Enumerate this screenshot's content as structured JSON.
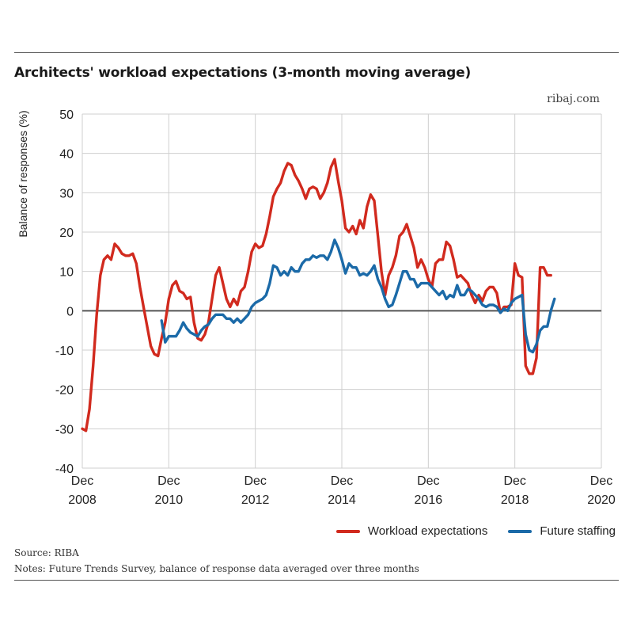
{
  "header": {
    "title": "Architects' workload expectations (3-month moving average)",
    "credit": "ribaj.com"
  },
  "legend": {
    "workload": "Workload expectations",
    "staffing": "Future staffing"
  },
  "footer": {
    "source": "Source: RIBA",
    "notes": "Notes: Future Trends Survey, balance of response data averaged over three months"
  },
  "colors": {
    "workload": "#d12a1e",
    "staffing": "#1b6aa8",
    "grid": "#cfcfcf",
    "zero_line": "#555555"
  },
  "chart_data": {
    "type": "line",
    "title": "Architects' workload expectations (3-month moving average)",
    "ylabel": "Balance of responses (%)",
    "xlabel": "",
    "ylim": [
      -40,
      50
    ],
    "xlim": [
      "2008-12",
      "2020-12"
    ],
    "yticks": [
      "50",
      "40",
      "30",
      "20",
      "10",
      "0",
      "-10",
      "-20",
      "-30",
      "-40"
    ],
    "xticks": [
      {
        "month": "Dec",
        "year": "2008"
      },
      {
        "month": "Dec",
        "year": "2010"
      },
      {
        "month": "Dec",
        "year": "2012"
      },
      {
        "month": "Dec",
        "year": "2014"
      },
      {
        "month": "Dec",
        "year": "2016"
      },
      {
        "month": "Dec",
        "year": "2018"
      },
      {
        "month": "Dec",
        "year": "2020"
      }
    ],
    "grid": true,
    "legend_position": "bottom-right",
    "series": [
      {
        "name": "Workload expectations",
        "color": "#d12a1e",
        "points": [
          [
            "2008-12",
            -30
          ],
          [
            "2009-01",
            -30.5
          ],
          [
            "2009-02",
            -25
          ],
          [
            "2009-03",
            -14
          ],
          [
            "2009-04",
            -1
          ],
          [
            "2009-05",
            9
          ],
          [
            "2009-06",
            13
          ],
          [
            "2009-07",
            14
          ],
          [
            "2009-08",
            13
          ],
          [
            "2009-09",
            17
          ],
          [
            "2009-10",
            16
          ],
          [
            "2009-11",
            14.5
          ],
          [
            "2009-12",
            14
          ],
          [
            "2010-01",
            14
          ],
          [
            "2010-02",
            14.5
          ],
          [
            "2010-03",
            12
          ],
          [
            "2010-04",
            6
          ],
          [
            "2010-05",
            1
          ],
          [
            "2010-06",
            -4
          ],
          [
            "2010-07",
            -9
          ],
          [
            "2010-08",
            -11
          ],
          [
            "2010-09",
            -11.5
          ],
          [
            "2010-10",
            -7
          ],
          [
            "2010-11",
            -3
          ],
          [
            "2010-12",
            3
          ],
          [
            "2011-01",
            6.5
          ],
          [
            "2011-02",
            7.5
          ],
          [
            "2011-03",
            5
          ],
          [
            "2011-04",
            4.5
          ],
          [
            "2011-05",
            3
          ],
          [
            "2011-06",
            3.5
          ],
          [
            "2011-07",
            -3
          ],
          [
            "2011-08",
            -7
          ],
          [
            "2011-09",
            -7.5
          ],
          [
            "2011-10",
            -6
          ],
          [
            "2011-11",
            -3
          ],
          [
            "2011-12",
            3
          ],
          [
            "2012-01",
            9
          ],
          [
            "2012-02",
            11
          ],
          [
            "2012-03",
            7
          ],
          [
            "2012-04",
            3
          ],
          [
            "2012-05",
            1
          ],
          [
            "2012-06",
            3
          ],
          [
            "2012-07",
            1.5
          ],
          [
            "2012-08",
            5
          ],
          [
            "2012-09",
            6
          ],
          [
            "2012-10",
            10
          ],
          [
            "2012-11",
            15
          ],
          [
            "2012-12",
            17
          ],
          [
            "2013-01",
            16
          ],
          [
            "2013-02",
            16.5
          ],
          [
            "2013-03",
            19.5
          ],
          [
            "2013-04",
            24
          ],
          [
            "2013-05",
            29
          ],
          [
            "2013-06",
            31
          ],
          [
            "2013-07",
            32.5
          ],
          [
            "2013-08",
            35.5
          ],
          [
            "2013-09",
            37.5
          ],
          [
            "2013-10",
            37
          ],
          [
            "2013-11",
            34.5
          ],
          [
            "2013-12",
            33
          ],
          [
            "2014-01",
            31
          ],
          [
            "2014-02",
            28.5
          ],
          [
            "2014-03",
            31
          ],
          [
            "2014-04",
            31.5
          ],
          [
            "2014-05",
            31
          ],
          [
            "2014-06",
            28.5
          ],
          [
            "2014-07",
            30
          ],
          [
            "2014-08",
            32.5
          ],
          [
            "2014-09",
            36.5
          ],
          [
            "2014-10",
            38.5
          ],
          [
            "2014-11",
            33
          ],
          [
            "2014-12",
            28
          ],
          [
            "2015-01",
            21
          ],
          [
            "2015-02",
            20
          ],
          [
            "2015-03",
            21.5
          ],
          [
            "2015-04",
            19.5
          ],
          [
            "2015-05",
            23
          ],
          [
            "2015-06",
            21
          ],
          [
            "2015-07",
            26.5
          ],
          [
            "2015-08",
            29.5
          ],
          [
            "2015-09",
            28
          ],
          [
            "2015-10",
            19
          ],
          [
            "2015-11",
            10
          ],
          [
            "2015-12",
            4
          ],
          [
            "2016-01",
            9
          ],
          [
            "2016-02",
            11
          ],
          [
            "2016-03",
            14
          ],
          [
            "2016-04",
            19
          ],
          [
            "2016-05",
            20
          ],
          [
            "2016-06",
            22
          ],
          [
            "2016-07",
            19
          ],
          [
            "2016-08",
            16
          ],
          [
            "2016-09",
            11
          ],
          [
            "2016-10",
            13
          ],
          [
            "2016-11",
            11
          ],
          [
            "2016-12",
            8
          ],
          [
            "2017-01",
            6
          ],
          [
            "2017-02",
            12
          ],
          [
            "2017-03",
            13
          ],
          [
            "2017-04",
            13
          ],
          [
            "2017-05",
            17.5
          ],
          [
            "2017-06",
            16.5
          ],
          [
            "2017-07",
            13
          ],
          [
            "2017-08",
            8.5
          ],
          [
            "2017-09",
            9
          ],
          [
            "2017-10",
            8
          ],
          [
            "2017-11",
            7
          ],
          [
            "2017-12",
            4
          ],
          [
            "2018-01",
            2
          ],
          [
            "2018-02",
            4
          ],
          [
            "2018-03",
            2.5
          ],
          [
            "2018-04",
            5
          ],
          [
            "2018-05",
            6
          ],
          [
            "2018-06",
            6
          ],
          [
            "2018-07",
            4.5
          ],
          [
            "2018-08",
            -0.5
          ],
          [
            "2018-09",
            1
          ],
          [
            "2018-10",
            1
          ],
          [
            "2018-11",
            1.5
          ],
          [
            "2018-12",
            12
          ],
          [
            "2019-01",
            9
          ],
          [
            "2019-02",
            8.5
          ],
          [
            "2019-03",
            -14
          ],
          [
            "2019-04",
            -16
          ],
          [
            "2019-05",
            -16
          ],
          [
            "2019-06",
            -12
          ],
          [
            "2019-07",
            11
          ],
          [
            "2019-08",
            11
          ],
          [
            "2019-09",
            9
          ],
          [
            "2019-10",
            9
          ]
        ]
      },
      {
        "name": "Future staffing",
        "color": "#1b6aa8",
        "points": [
          [
            "2010-10",
            -2.5
          ],
          [
            "2010-11",
            -8
          ],
          [
            "2010-12",
            -6.5
          ],
          [
            "2011-01",
            -6.5
          ],
          [
            "2011-02",
            -6.5
          ],
          [
            "2011-03",
            -5
          ],
          [
            "2011-04",
            -3
          ],
          [
            "2011-05",
            -4.5
          ],
          [
            "2011-06",
            -5.5
          ],
          [
            "2011-07",
            -6
          ],
          [
            "2011-08",
            -6.5
          ],
          [
            "2011-09",
            -5
          ],
          [
            "2011-10",
            -4
          ],
          [
            "2011-11",
            -3.5
          ],
          [
            "2011-12",
            -2
          ],
          [
            "2012-01",
            -1
          ],
          [
            "2012-02",
            -1
          ],
          [
            "2012-03",
            -1
          ],
          [
            "2012-04",
            -2
          ],
          [
            "2012-05",
            -2
          ],
          [
            "2012-06",
            -3
          ],
          [
            "2012-07",
            -2
          ],
          [
            "2012-08",
            -3
          ],
          [
            "2012-09",
            -2
          ],
          [
            "2012-10",
            -1
          ],
          [
            "2012-11",
            1
          ],
          [
            "2012-12",
            2
          ],
          [
            "2013-01",
            2.5
          ],
          [
            "2013-02",
            3
          ],
          [
            "2013-03",
            4
          ],
          [
            "2013-04",
            7
          ],
          [
            "2013-05",
            11.5
          ],
          [
            "2013-06",
            11
          ],
          [
            "2013-07",
            9
          ],
          [
            "2013-08",
            10
          ],
          [
            "2013-09",
            9
          ],
          [
            "2013-10",
            11
          ],
          [
            "2013-11",
            10
          ],
          [
            "2013-12",
            10
          ],
          [
            "2014-01",
            12
          ],
          [
            "2014-02",
            13
          ],
          [
            "2014-03",
            13
          ],
          [
            "2014-04",
            14
          ],
          [
            "2014-05",
            13.5
          ],
          [
            "2014-06",
            14
          ],
          [
            "2014-07",
            14
          ],
          [
            "2014-08",
            13
          ],
          [
            "2014-09",
            15
          ],
          [
            "2014-10",
            18
          ],
          [
            "2014-11",
            16
          ],
          [
            "2014-12",
            13
          ],
          [
            "2015-01",
            9.5
          ],
          [
            "2015-02",
            12
          ],
          [
            "2015-03",
            11
          ],
          [
            "2015-04",
            11
          ],
          [
            "2015-05",
            9
          ],
          [
            "2015-06",
            9.5
          ],
          [
            "2015-07",
            9
          ],
          [
            "2015-08",
            10
          ],
          [
            "2015-09",
            11.5
          ],
          [
            "2015-10",
            8
          ],
          [
            "2015-11",
            6
          ],
          [
            "2015-12",
            3
          ],
          [
            "2016-01",
            1
          ],
          [
            "2016-02",
            1.5
          ],
          [
            "2016-03",
            4
          ],
          [
            "2016-04",
            7
          ],
          [
            "2016-05",
            10
          ],
          [
            "2016-06",
            10
          ],
          [
            "2016-07",
            8
          ],
          [
            "2016-08",
            8
          ],
          [
            "2016-09",
            6
          ],
          [
            "2016-10",
            7
          ],
          [
            "2016-11",
            7
          ],
          [
            "2016-12",
            7
          ],
          [
            "2017-01",
            6
          ],
          [
            "2017-02",
            5
          ],
          [
            "2017-03",
            4
          ],
          [
            "2017-04",
            5
          ],
          [
            "2017-05",
            3
          ],
          [
            "2017-06",
            4
          ],
          [
            "2017-07",
            3.5
          ],
          [
            "2017-08",
            6.5
          ],
          [
            "2017-09",
            4
          ],
          [
            "2017-10",
            4
          ],
          [
            "2017-11",
            5.5
          ],
          [
            "2017-12",
            5
          ],
          [
            "2018-01",
            4
          ],
          [
            "2018-02",
            3
          ],
          [
            "2018-03",
            1.5
          ],
          [
            "2018-04",
            1
          ],
          [
            "2018-05",
            1.5
          ],
          [
            "2018-06",
            1.5
          ],
          [
            "2018-07",
            1
          ],
          [
            "2018-08",
            -0.5
          ],
          [
            "2018-09",
            0.5
          ],
          [
            "2018-10",
            0
          ],
          [
            "2018-11",
            2
          ],
          [
            "2018-12",
            3
          ],
          [
            "2019-01",
            3.5
          ],
          [
            "2019-02",
            4
          ],
          [
            "2019-03",
            -6
          ],
          [
            "2019-04",
            -10
          ],
          [
            "2019-05",
            -10.5
          ],
          [
            "2019-06",
            -8.5
          ],
          [
            "2019-07",
            -5
          ],
          [
            "2019-08",
            -4
          ],
          [
            "2019-09",
            -4
          ],
          [
            "2019-10",
            0
          ],
          [
            "2019-11",
            3
          ]
        ]
      }
    ]
  }
}
